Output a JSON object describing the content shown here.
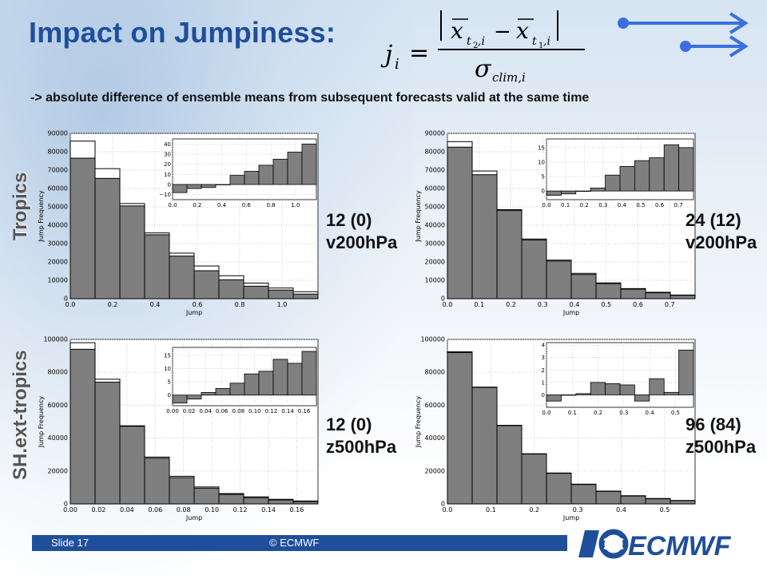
{
  "title": "Impact on Jumpiness:",
  "subtitle": "-> absolute difference of ensemble means from subsequent forecasts valid at the same time",
  "row_labels": {
    "tropics": "Tropics",
    "sh": "SH.ext-tropics"
  },
  "annotations": [
    {
      "count": "12 (0)",
      "var": "v200hPa"
    },
    {
      "count": "24 (12)",
      "var": "v200hPa"
    },
    {
      "count": "12 (0)",
      "var": "z500hPa"
    },
    {
      "count": "96 (84)",
      "var": "z500hPa"
    }
  ],
  "footer": {
    "slide": "Slide 17",
    "copyright": "© ECMWF"
  },
  "logo_text": "ECMWF",
  "colors": {
    "title": "#1f4e9b",
    "bar": "#7f7f7f",
    "footer": "#1f4e9b",
    "arrow": "#3a6fe0"
  },
  "chart_data": [
    {
      "type": "bar",
      "panel": "tropics-v200-12",
      "xlabel": "Jump",
      "ylabel": "Jump Frequency",
      "xlim": [
        0,
        1.17
      ],
      "ylim": [
        0,
        90000
      ],
      "xticks": [
        0.0,
        0.2,
        0.4,
        0.6,
        0.8,
        1.0
      ],
      "yticks": [
        0,
        10000,
        20000,
        30000,
        40000,
        50000,
        60000,
        70000,
        80000,
        90000
      ],
      "tick_decimals": 1,
      "edges": [
        0,
        0.117,
        0.234,
        0.351,
        0.468,
        0.585,
        0.702,
        0.819,
        0.936,
        1.053,
        1.17
      ],
      "series": [
        {
          "values": [
            85800,
            70800,
            51800,
            35800,
            24800,
            17800,
            12500,
            8500,
            5800,
            3800
          ]
        },
        {
          "values": [
            76500,
            65500,
            50500,
            34800,
            23200,
            15200,
            10300,
            6800,
            4700,
            2500
          ]
        }
      ],
      "inset": {
        "xlim": [
          0,
          1.17
        ],
        "ylim": [
          -15,
          45
        ],
        "xticks": [
          0.0,
          0.2,
          0.4,
          0.6,
          0.8,
          1.0
        ],
        "yticks": [
          -10,
          0,
          10,
          20,
          30,
          40
        ],
        "tick_decimals": 1,
        "values": [
          -8,
          -4,
          -3,
          0,
          9,
          13,
          19,
          25,
          32,
          40
        ]
      }
    },
    {
      "type": "bar",
      "panel": "tropics-v200-24",
      "xlabel": "Jump",
      "ylabel": "Jump Frequency",
      "xlim": [
        0,
        0.78
      ],
      "ylim": [
        0,
        90000
      ],
      "xticks": [
        0.0,
        0.1,
        0.2,
        0.3,
        0.4,
        0.5,
        0.6,
        0.7
      ],
      "yticks": [
        0,
        10000,
        20000,
        30000,
        40000,
        50000,
        60000,
        70000,
        80000,
        90000
      ],
      "tick_decimals": 1,
      "edges": [
        0,
        0.078,
        0.156,
        0.234,
        0.312,
        0.39,
        0.468,
        0.546,
        0.624,
        0.702,
        0.78
      ],
      "series": [
        {
          "values": [
            85500,
            69500,
            48500,
            32500,
            21000,
            13800,
            8600,
            5500,
            3500,
            2000
          ]
        },
        {
          "values": [
            82500,
            67500,
            48000,
            32000,
            20500,
            13200,
            8200,
            5200,
            3200,
            1800
          ]
        }
      ],
      "inset": {
        "xlim": [
          0,
          0.78
        ],
        "ylim": [
          -3,
          18
        ],
        "xticks": [
          0.0,
          0.1,
          0.2,
          0.3,
          0.4,
          0.5,
          0.6,
          0.7
        ],
        "yticks": [
          0,
          5,
          10,
          15
        ],
        "tick_decimals": 1,
        "values": [
          -1.5,
          -1,
          0,
          1,
          5.5,
          8.5,
          10.5,
          11.5,
          16,
          15
        ]
      }
    },
    {
      "type": "bar",
      "panel": "sh-z500-12",
      "xlabel": "Jump",
      "ylabel": "Jump Frequency",
      "xlim": [
        0,
        0.175
      ],
      "ylim": [
        0,
        100000
      ],
      "xticks": [
        0.0,
        0.02,
        0.04,
        0.06,
        0.08,
        0.1,
        0.12,
        0.14,
        0.16
      ],
      "yticks": [
        0,
        20000,
        40000,
        60000,
        80000,
        100000
      ],
      "tick_decimals": 2,
      "edges": [
        0,
        0.0175,
        0.035,
        0.0525,
        0.07,
        0.0875,
        0.105,
        0.1225,
        0.14,
        0.1575,
        0.175
      ],
      "series": [
        {
          "values": [
            98000,
            75800,
            47500,
            28500,
            16800,
            10300,
            6300,
            4300,
            2800,
            1800
          ]
        },
        {
          "values": [
            94000,
            74000,
            47200,
            27800,
            16000,
            9600,
            5800,
            3800,
            2400,
            1400
          ]
        }
      ],
      "inset": {
        "xlim": [
          0,
          0.175
        ],
        "ylim": [
          -4,
          18
        ],
        "xticks": [
          0.0,
          0.02,
          0.04,
          0.06,
          0.08,
          0.1,
          0.12,
          0.14,
          0.16
        ],
        "yticks": [
          0,
          5,
          10,
          15
        ],
        "tick_decimals": 2,
        "values": [
          -3,
          -1.5,
          1,
          2.5,
          4.5,
          8,
          9,
          13.5,
          12,
          16.5
        ]
      }
    },
    {
      "type": "bar",
      "panel": "sh-z500-96",
      "xlabel": "Jump",
      "ylabel": "Jump Frequency",
      "xlim": [
        0,
        0.57
      ],
      "ylim": [
        0,
        100000
      ],
      "xticks": [
        0.0,
        0.1,
        0.2,
        0.3,
        0.4,
        0.5
      ],
      "yticks": [
        0,
        20000,
        40000,
        60000,
        80000,
        100000
      ],
      "tick_decimals": 1,
      "edges": [
        0,
        0.057,
        0.114,
        0.171,
        0.228,
        0.285,
        0.342,
        0.399,
        0.456,
        0.513,
        0.57
      ],
      "series": [
        {
          "values": [
            92500,
            71000,
            47800,
            30500,
            18800,
            12000,
            7800,
            5000,
            3300,
            2100
          ]
        },
        {
          "values": [
            92000,
            70800,
            47600,
            30300,
            18600,
            11800,
            7600,
            4800,
            3100,
            2000
          ]
        }
      ],
      "inset": {
        "xlim": [
          0,
          0.57
        ],
        "ylim": [
          -1,
          4.2
        ],
        "xticks": [
          0.0,
          0.1,
          0.2,
          0.3,
          0.4,
          0.5
        ],
        "yticks": [
          0,
          1,
          2,
          3,
          4
        ],
        "tick_decimals": 1,
        "values": [
          -0.5,
          0,
          0.1,
          1,
          0.9,
          0.8,
          -0.5,
          1.3,
          0.2,
          3.6
        ]
      }
    }
  ]
}
